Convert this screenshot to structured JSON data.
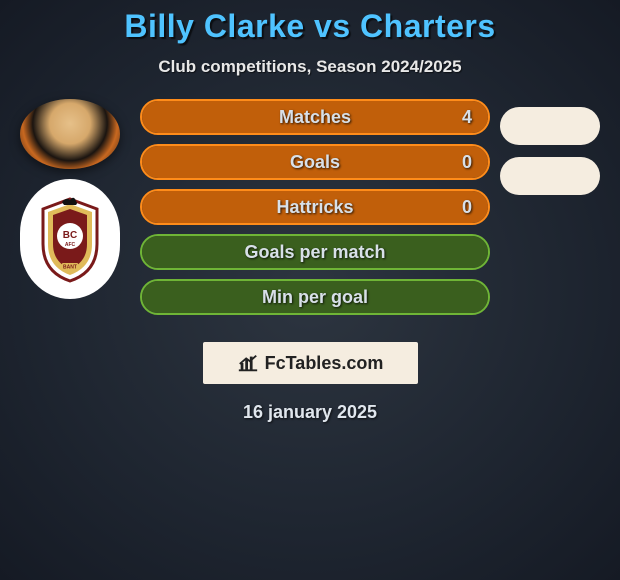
{
  "title": "Billy Clarke vs Charters",
  "subtitle": "Club competitions, Season 2024/2025",
  "watermark_text": "FcTables.com",
  "date_text": "16 january 2025",
  "colors": {
    "title": "#4fc3ff",
    "orange_border": "#ff8c1a",
    "orange_fill": "#c15f0a",
    "green_border": "#6fb536",
    "green_fill": "#3a5f1e",
    "background_dark": "#151a24",
    "pill_bg": "#f5ede0"
  },
  "stats": [
    {
      "label": "Matches",
      "value": "4",
      "theme": "orange",
      "fill_pct": 100,
      "show_value": true
    },
    {
      "label": "Goals",
      "value": "0",
      "theme": "orange",
      "fill_pct": 100,
      "show_value": true
    },
    {
      "label": "Hattricks",
      "value": "0",
      "theme": "orange",
      "fill_pct": 100,
      "show_value": true
    },
    {
      "label": "Goals per match",
      "value": "",
      "theme": "green",
      "fill_pct": 100,
      "show_value": false
    },
    {
      "label": "Min per goal",
      "value": "",
      "theme": "green",
      "fill_pct": 100,
      "show_value": false
    }
  ],
  "right_pills": 2
}
